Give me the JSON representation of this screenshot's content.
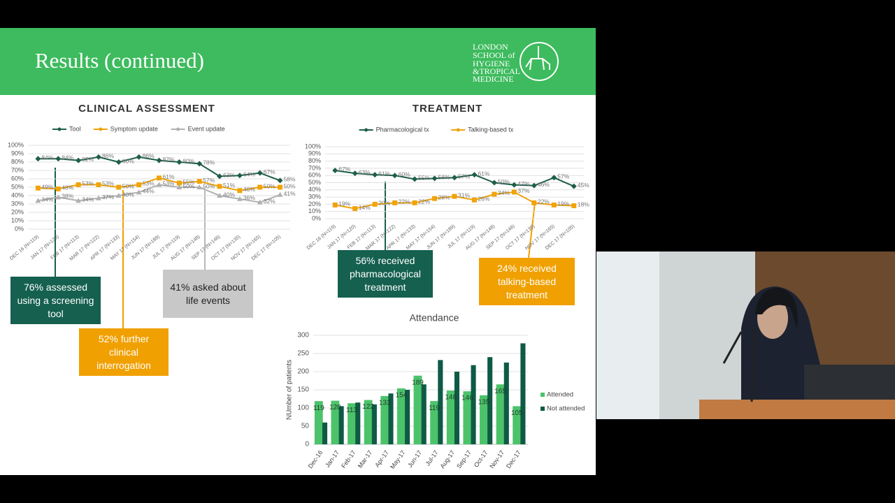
{
  "slide": {
    "title": "Results (continued)",
    "logo": [
      "LONDON",
      "SCHOOL of",
      "HYGIENE",
      "&TROPICAL",
      "MEDICINE"
    ],
    "callouts": [
      {
        "text": "76% assessed using a screening tool"
      },
      {
        "text": "52% further clinical interrogation"
      },
      {
        "text": "41% asked about life events"
      },
      {
        "text": "56% received pharmacological treatment"
      },
      {
        "text": "24% received talking-based treatment"
      }
    ]
  },
  "chart_data": [
    {
      "type": "line",
      "title": "CLINICAL ASSESSMENT",
      "categories": [
        "DEC 16 (N=119)",
        "JAN 17 (N=120)",
        "FEB 17 (N=113)",
        "MAR 17 (N=122)",
        "APR 17 (N=133)",
        "MAY 17 (N=154)",
        "JUN 17 (N=189)",
        "JUL 17 (N=119)",
        "AUG 17 (N=148)",
        "SEP 17 (N=146)",
        "OCT 17 (N=135)",
        "NOV 17 (N=165)",
        "DEC 17 (N=105)"
      ],
      "series": [
        {
          "name": "Tool",
          "color": "#1e5e4a",
          "marker": "diamond",
          "values": [
            84,
            84,
            82,
            86,
            80,
            86,
            82,
            80,
            78,
            63,
            64,
            67,
            58
          ],
          "value_labels": [
            "84%",
            "84%",
            "82%",
            "86%",
            "80%",
            "86%",
            "82%",
            "80%",
            "78%",
            "63%",
            "64%",
            "67%",
            "58%"
          ]
        },
        {
          "name": "Symptom update",
          "color": "#f0a30a",
          "marker": "square",
          "values": [
            49,
            48,
            53,
            53,
            50,
            53,
            61,
            55,
            57,
            51,
            46,
            50,
            50
          ],
          "value_labels": [
            "49%",
            "48%",
            "53%",
            "53%",
            "50%",
            "53%",
            "61%",
            "55%",
            "57%",
            "51%",
            "46%",
            "50%",
            "50%"
          ]
        },
        {
          "name": "Event update",
          "color": "#b0b0b0",
          "marker": "triangle",
          "values": [
            34,
            38,
            34,
            37,
            40,
            44,
            53,
            50,
            50,
            40,
            36,
            32,
            41
          ],
          "value_labels": [
            "34%",
            "38%",
            "34%",
            "37%",
            "40%",
            "44%",
            "53%",
            "50%",
            "50%",
            "40%",
            "36%",
            "32%",
            "41%"
          ]
        }
      ],
      "ylim": [
        0,
        100
      ],
      "yticks": [
        {
          "value": 0,
          "label": "0%"
        },
        {
          "value": 10,
          "label": "10%"
        },
        {
          "value": 20,
          "label": "20%"
        },
        {
          "value": 30,
          "label": "30%"
        },
        {
          "value": 40,
          "label": "40%"
        },
        {
          "value": 50,
          "label": "50%"
        },
        {
          "value": 60,
          "label": "60%"
        },
        {
          "value": 70,
          "label": "70%"
        },
        {
          "value": 80,
          "label": "80%"
        },
        {
          "value": 90,
          "label": "90%"
        },
        {
          "value": 100,
          "label": "100%"
        }
      ],
      "grid": true,
      "legend": "top"
    },
    {
      "type": "line",
      "title": "TREATMENT",
      "categories": [
        "DEC 16 (N=119)",
        "JAN 17 (N=120)",
        "FEB 17 (N=113)",
        "MAR 17 (N=122)",
        "APR 17 (N=133)",
        "MAY 17 (N=154)",
        "JUN 17 (N=189)",
        "JUL 17 (N=119)",
        "AUG 17 (N=148)",
        "SEP 17 (N=146)",
        "OCT 17 (N=135)",
        "NOV 17 (N=165)",
        "DEC 17 (N=105)"
      ],
      "series": [
        {
          "name": "Pharmacological tx",
          "color": "#1e5e4a",
          "marker": "diamond",
          "values": [
            67,
            63,
            61,
            60,
            55,
            56,
            57,
            61,
            50,
            47,
            46,
            57,
            45
          ],
          "value_labels": [
            "67%",
            "63%",
            "61%",
            "60%",
            "55%",
            "56%",
            "57%",
            "61%",
            "50%",
            "47%",
            "46%",
            "57%",
            "45%"
          ]
        },
        {
          "name": "Talking-based tx",
          "color": "#f0a30a",
          "marker": "square",
          "values": [
            19,
            14,
            20,
            22,
            22,
            28,
            31,
            26,
            34,
            37,
            22,
            19,
            18
          ],
          "value_labels": [
            "19%",
            "14%",
            "20%",
            "22%",
            "22%",
            "28%",
            "31%",
            "26%",
            "34%",
            "37%",
            "22%",
            "19%",
            "18%"
          ]
        }
      ],
      "ylim": [
        0,
        100
      ],
      "yticks": [
        {
          "value": 0,
          "label": "0%"
        },
        {
          "value": 10,
          "label": "10%"
        },
        {
          "value": 20,
          "label": "20%"
        },
        {
          "value": 30,
          "label": "30%"
        },
        {
          "value": 40,
          "label": "40%"
        },
        {
          "value": 50,
          "label": "50%"
        },
        {
          "value": 60,
          "label": "60%"
        },
        {
          "value": 70,
          "label": "70%"
        },
        {
          "value": 80,
          "label": "80%"
        },
        {
          "value": 90,
          "label": "90%"
        },
        {
          "value": 100,
          "label": "100%"
        }
      ],
      "grid": true,
      "legend": "top"
    },
    {
      "type": "bar",
      "title": "Attendance",
      "y_label": "NUmber of patients",
      "categories": [
        "Dec-16",
        "Jan-17",
        "Feb-17",
        "Mar-17",
        "Apr-17",
        "May-17",
        "Jun-17",
        "Jul-17",
        "Aug-17",
        "Sep-17",
        "Oct-17",
        "Nov-17",
        "Dec-17"
      ],
      "series": [
        {
          "name": "Attended",
          "color": "#4cc36a",
          "values": [
            119,
            120,
            113,
            122,
            133,
            154,
            189,
            119,
            148,
            146,
            135,
            165,
            105
          ]
        },
        {
          "name": "Not attended",
          "color": "#0f5a45",
          "values": [
            60,
            105,
            115,
            110,
            140,
            150,
            165,
            232,
            200,
            218,
            240,
            225,
            278
          ]
        }
      ],
      "ylim": [
        0,
        300
      ],
      "yticks": [
        0,
        50,
        100,
        150,
        200,
        250,
        300
      ],
      "grid": true,
      "legend": "right"
    }
  ]
}
